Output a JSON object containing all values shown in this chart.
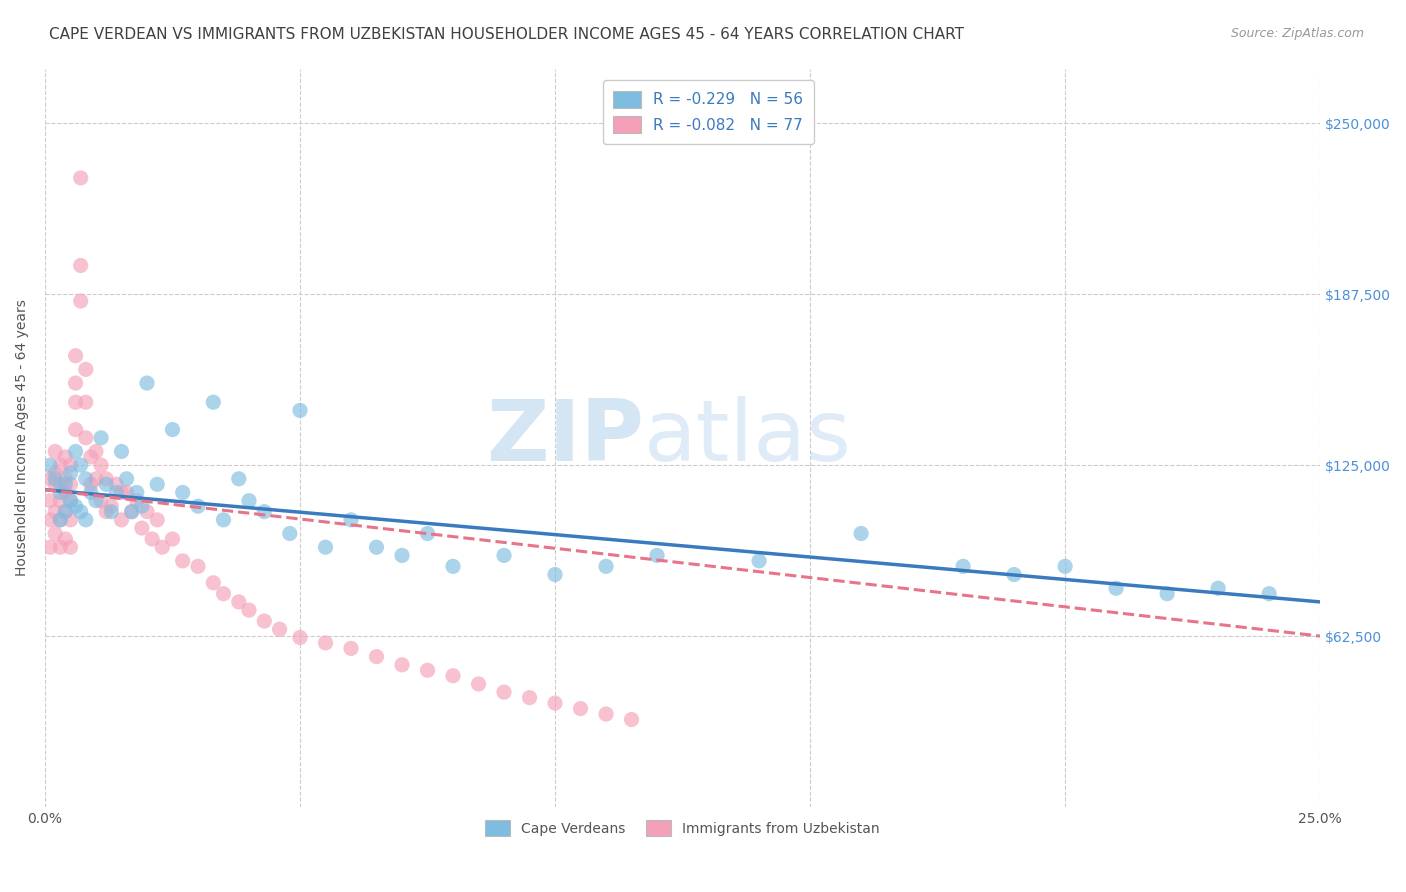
{
  "title": "CAPE VERDEAN VS IMMIGRANTS FROM UZBEKISTAN HOUSEHOLDER INCOME AGES 45 - 64 YEARS CORRELATION CHART",
  "source": "Source: ZipAtlas.com",
  "ylabel": "Householder Income Ages 45 - 64 years",
  "y_ticks": [
    0,
    62500,
    125000,
    187500,
    250000
  ],
  "y_tick_labels": [
    "",
    "$62,500",
    "$125,000",
    "$187,500",
    "$250,000"
  ],
  "xlim": [
    0.0,
    0.25
  ],
  "ylim": [
    0,
    270000
  ],
  "legend_entries": [
    {
      "label": "R = -0.229   N = 56"
    },
    {
      "label": "R = -0.082   N = 77"
    }
  ],
  "legend_bottom": [
    {
      "label": "Cape Verdeans"
    },
    {
      "label": "Immigrants from Uzbekistan"
    }
  ],
  "blue_scatter_x": [
    0.001,
    0.002,
    0.003,
    0.003,
    0.004,
    0.004,
    0.005,
    0.005,
    0.006,
    0.006,
    0.007,
    0.007,
    0.008,
    0.008,
    0.009,
    0.01,
    0.011,
    0.012,
    0.013,
    0.014,
    0.015,
    0.016,
    0.017,
    0.018,
    0.019,
    0.02,
    0.022,
    0.025,
    0.027,
    0.03,
    0.033,
    0.035,
    0.038,
    0.04,
    0.043,
    0.048,
    0.05,
    0.055,
    0.06,
    0.065,
    0.07,
    0.075,
    0.08,
    0.09,
    0.1,
    0.11,
    0.12,
    0.14,
    0.16,
    0.18,
    0.19,
    0.2,
    0.21,
    0.22,
    0.23,
    0.24
  ],
  "blue_scatter_y": [
    125000,
    120000,
    115000,
    105000,
    118000,
    108000,
    122000,
    112000,
    130000,
    110000,
    125000,
    108000,
    120000,
    105000,
    115000,
    112000,
    135000,
    118000,
    108000,
    115000,
    130000,
    120000,
    108000,
    115000,
    110000,
    155000,
    118000,
    138000,
    115000,
    110000,
    148000,
    105000,
    120000,
    112000,
    108000,
    100000,
    145000,
    95000,
    105000,
    95000,
    92000,
    100000,
    88000,
    92000,
    85000,
    88000,
    92000,
    90000,
    100000,
    88000,
    85000,
    88000,
    80000,
    78000,
    80000,
    78000
  ],
  "pink_scatter_x": [
    0.001,
    0.001,
    0.001,
    0.001,
    0.002,
    0.002,
    0.002,
    0.002,
    0.002,
    0.003,
    0.003,
    0.003,
    0.003,
    0.003,
    0.004,
    0.004,
    0.004,
    0.004,
    0.004,
    0.005,
    0.005,
    0.005,
    0.005,
    0.005,
    0.006,
    0.006,
    0.006,
    0.006,
    0.007,
    0.007,
    0.007,
    0.008,
    0.008,
    0.008,
    0.009,
    0.009,
    0.01,
    0.01,
    0.011,
    0.011,
    0.012,
    0.012,
    0.013,
    0.014,
    0.015,
    0.015,
    0.016,
    0.017,
    0.018,
    0.019,
    0.02,
    0.021,
    0.022,
    0.023,
    0.025,
    0.027,
    0.03,
    0.033,
    0.035,
    0.038,
    0.04,
    0.043,
    0.046,
    0.05,
    0.055,
    0.06,
    0.065,
    0.07,
    0.075,
    0.08,
    0.085,
    0.09,
    0.095,
    0.1,
    0.105,
    0.11,
    0.115
  ],
  "pink_scatter_y": [
    120000,
    112000,
    105000,
    95000,
    130000,
    122000,
    118000,
    108000,
    100000,
    125000,
    118000,
    112000,
    105000,
    95000,
    128000,
    120000,
    115000,
    108000,
    98000,
    125000,
    118000,
    112000,
    105000,
    95000,
    165000,
    155000,
    148000,
    138000,
    230000,
    198000,
    185000,
    160000,
    148000,
    135000,
    128000,
    118000,
    130000,
    120000,
    125000,
    112000,
    120000,
    108000,
    110000,
    118000,
    115000,
    105000,
    115000,
    108000,
    112000,
    102000,
    108000,
    98000,
    105000,
    95000,
    98000,
    90000,
    88000,
    82000,
    78000,
    75000,
    72000,
    68000,
    65000,
    62000,
    60000,
    58000,
    55000,
    52000,
    50000,
    48000,
    45000,
    42000,
    40000,
    38000,
    36000,
    34000,
    32000
  ],
  "blue_line_x": [
    0.0,
    0.25
  ],
  "blue_line_y": [
    116000,
    75000
  ],
  "pink_line_x": [
    0.0,
    0.25
  ],
  "pink_line_y": [
    116000,
    62500
  ],
  "watermark_zip": "ZIP",
  "watermark_atlas": "atlas",
  "bg_color": "#ffffff",
  "grid_color": "#cccccc",
  "blue_color": "#7fbde0",
  "pink_color": "#f4a0b8",
  "blue_line_color": "#3a7abf",
  "pink_line_color": "#e8748a",
  "title_color": "#404040",
  "axis_label_color": "#555555",
  "tick_color_right": "#4a90d9",
  "legend_text_color": "#3a7abf"
}
